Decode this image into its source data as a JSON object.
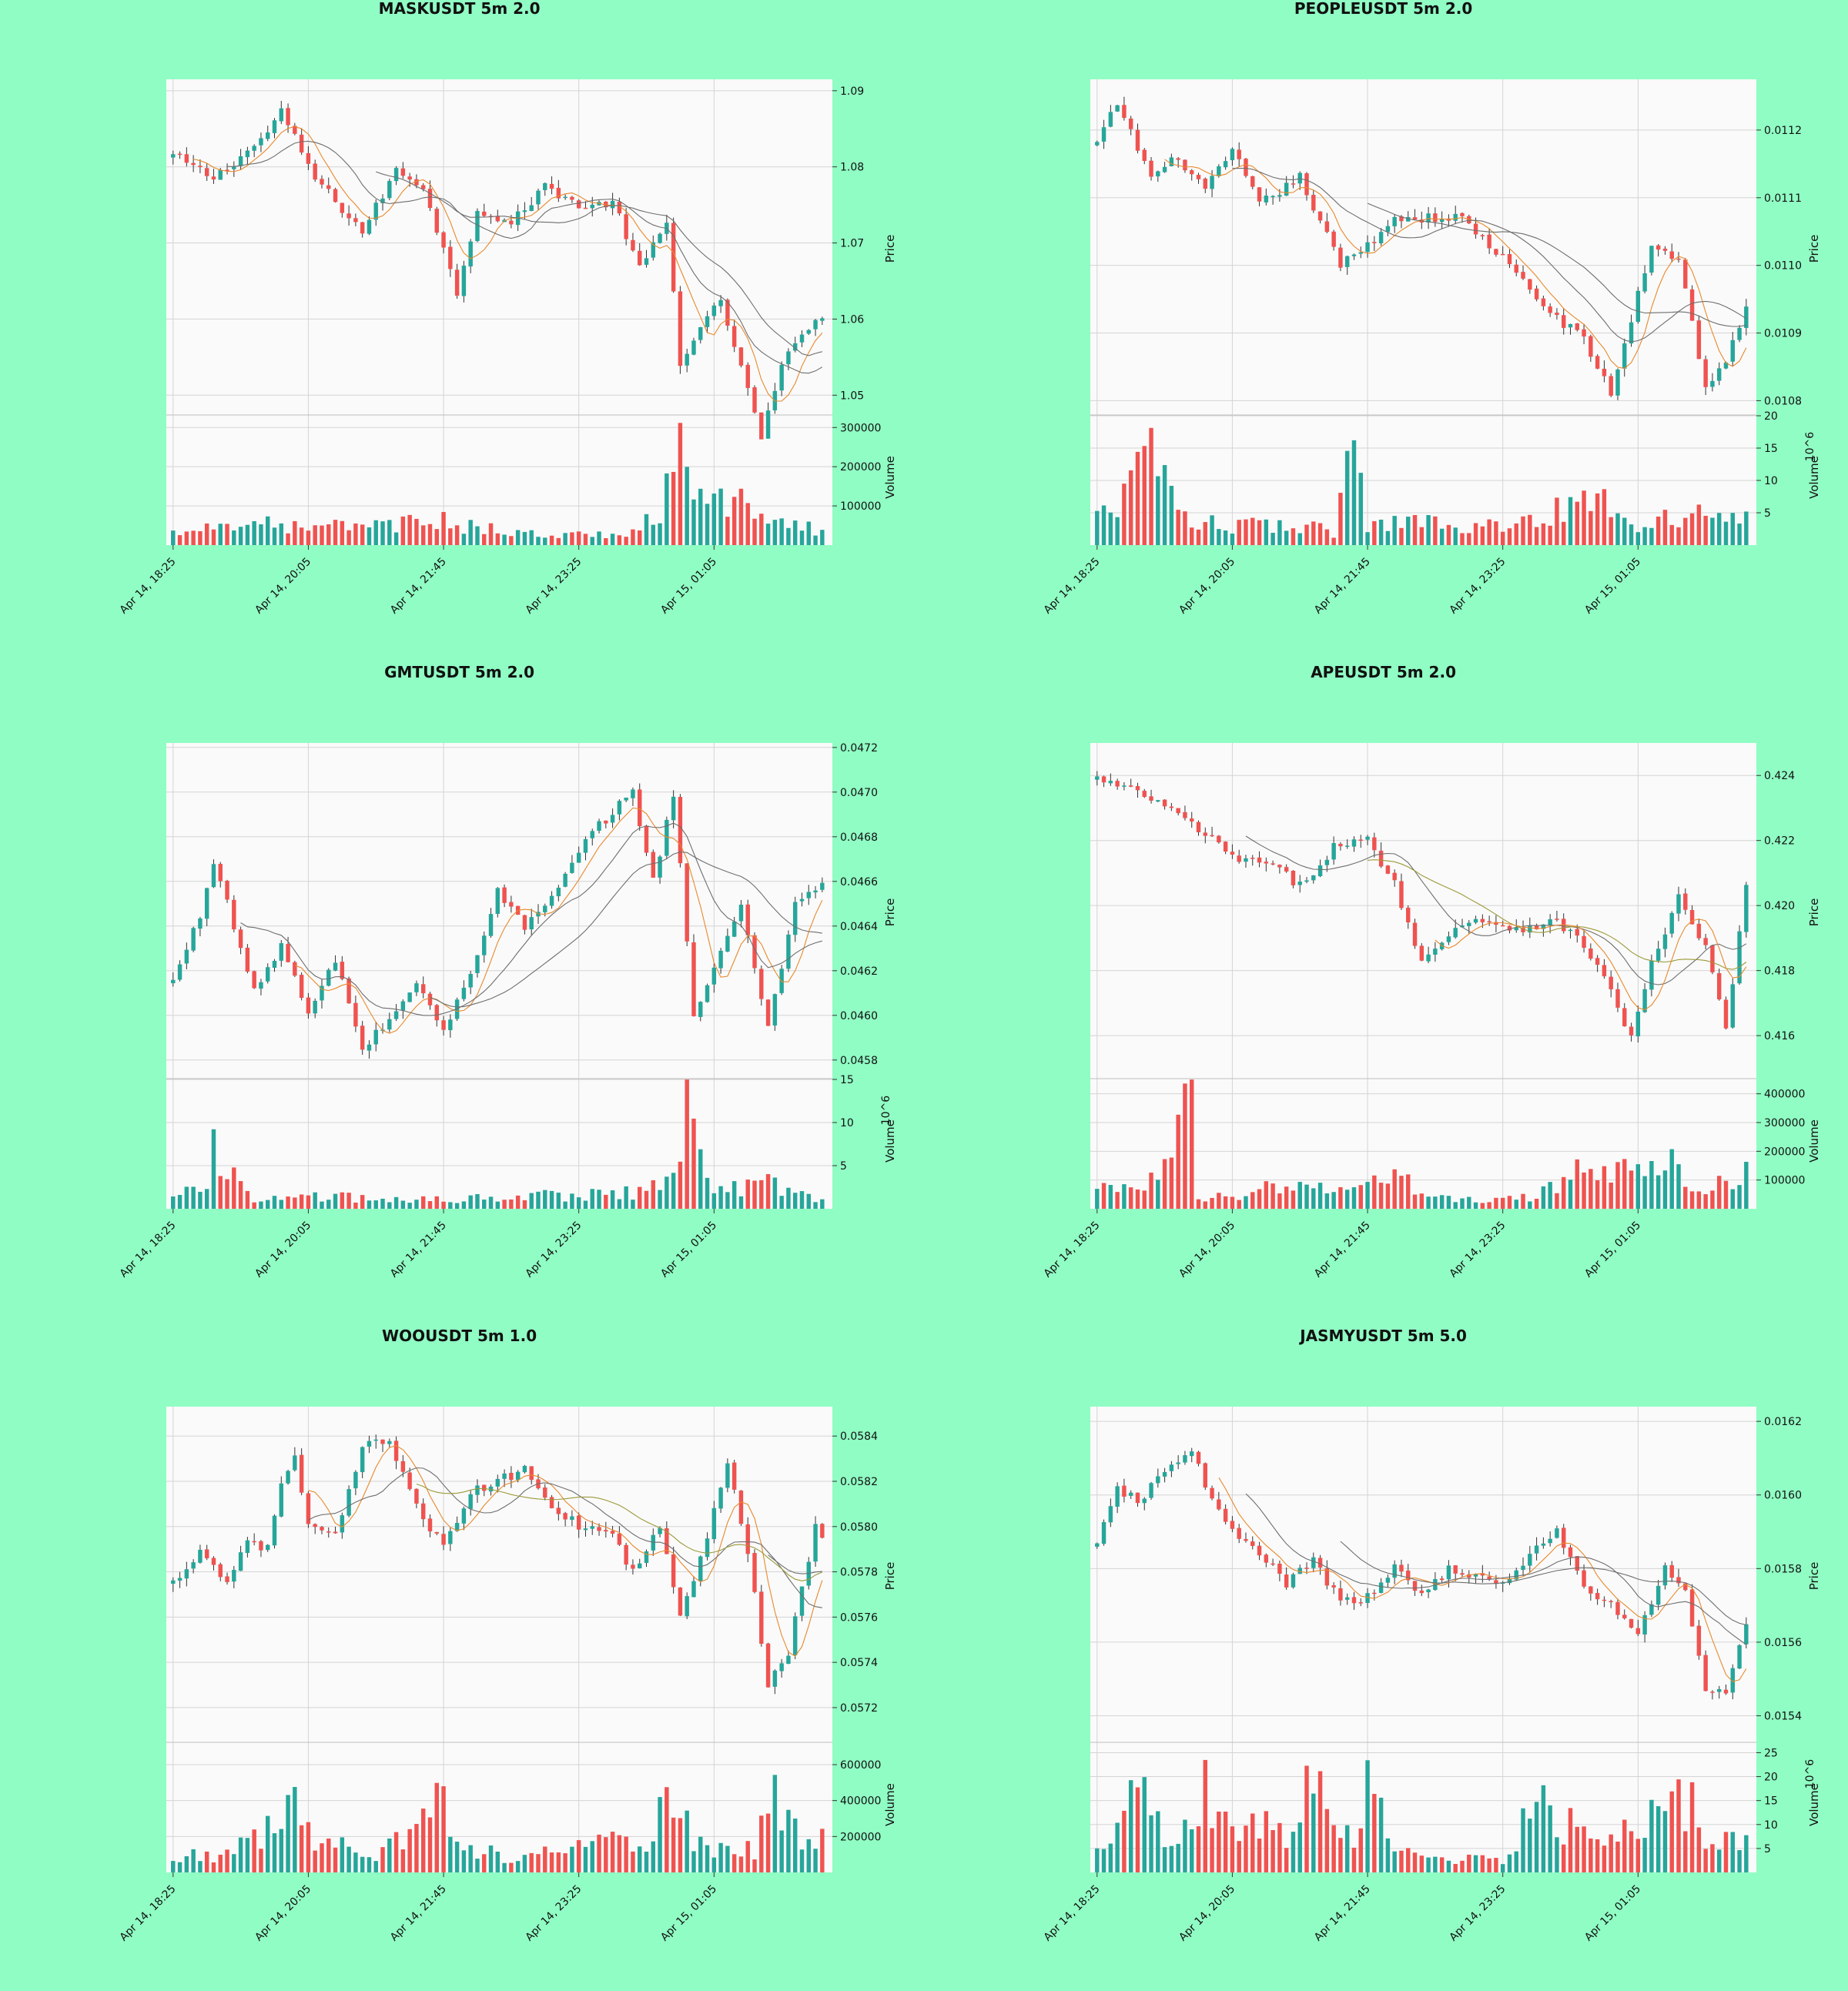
{
  "colors": {
    "background": "#90fdc4",
    "panel": "#fafafa",
    "grid": "#d4d4d4",
    "up": "#26a69a",
    "down": "#ef5350",
    "ma_orange": "#e8892b",
    "ma_gray": "#6e6e6e",
    "ma_olive": "#9a9a3a"
  },
  "x_ticks": [
    "Apr 14, 18:25",
    "Apr 14, 20:05",
    "Apr 14, 21:45",
    "Apr 14, 23:25",
    "Apr 15, 01:05"
  ],
  "chart_data": [
    {
      "type": "candlestick",
      "title": "MASKUSDT 5m 2.0",
      "ylabel": "Price",
      "vol_label": "Volume",
      "vol_exp": "",
      "ylim": [
        1.0475,
        1.0915
      ],
      "price_ticks": [
        "1.09",
        "1.08",
        "1.07",
        "1.06",
        "1.05"
      ],
      "vmax": 330000,
      "vol_ticks": [
        "300000",
        "200000",
        "100000"
      ],
      "anchors": [
        [
          0,
          1.0815
        ],
        [
          6,
          1.0785
        ],
        [
          13,
          1.0835
        ],
        [
          16,
          1.0872
        ],
        [
          21,
          1.0785
        ],
        [
          28,
          1.0715
        ],
        [
          33,
          1.0795
        ],
        [
          37,
          1.0775
        ],
        [
          42,
          1.0635
        ],
        [
          45,
          1.0745
        ],
        [
          50,
          1.0725
        ],
        [
          55,
          1.0775
        ],
        [
          61,
          1.0745
        ],
        [
          65,
          1.0755
        ],
        [
          69,
          1.0665
        ],
        [
          73,
          1.0725
        ],
        [
          75,
          1.0545
        ],
        [
          78,
          1.0585
        ],
        [
          81,
          1.0625
        ],
        [
          84,
          1.0535
        ],
        [
          87,
          1.0445
        ],
        [
          90,
          1.0535
        ],
        [
          93,
          1.0585
        ],
        [
          96,
          1.0605
        ]
      ],
      "vol_anchors": [
        [
          0,
          30000
        ],
        [
          10,
          60000
        ],
        [
          20,
          40000
        ],
        [
          30,
          55000
        ],
        [
          40,
          60000
        ],
        [
          50,
          30000
        ],
        [
          60,
          25000
        ],
        [
          68,
          30000
        ],
        [
          72,
          80000
        ],
        [
          75,
          270000
        ],
        [
          78,
          100000
        ],
        [
          83,
          120000
        ],
        [
          88,
          50000
        ],
        [
          96,
          40000
        ]
      ],
      "mas": [
        {
          "color": "ma_orange",
          "period": 6,
          "start": 3
        },
        {
          "color": "ma_gray",
          "period": 12,
          "start": 8
        },
        {
          "color": "ma_gray",
          "period": 20,
          "start": 30
        }
      ]
    },
    {
      "type": "candlestick",
      "title": "PEOPLEUSDT 5m 2.0",
      "ylabel": "Price",
      "vol_label": "Volume",
      "vol_exp": "6",
      "ylim": [
        0.01078,
        0.011275
      ],
      "price_ticks": [
        "0.0112",
        "0.0111",
        "0.0110",
        "0.0109",
        "0.0108"
      ],
      "vmax": 20,
      "vol_ticks": [
        "20",
        "15",
        "10",
        "5"
      ],
      "anchors": [
        [
          0,
          0.01118
        ],
        [
          3,
          0.01124
        ],
        [
          8,
          0.01113
        ],
        [
          12,
          0.01116
        ],
        [
          16,
          0.01111
        ],
        [
          20,
          0.01117
        ],
        [
          24,
          0.01109
        ],
        [
          30,
          0.01113
        ],
        [
          36,
          0.011
        ],
        [
          40,
          0.01103
        ],
        [
          44,
          0.01107
        ],
        [
          50,
          0.01107
        ],
        [
          54,
          0.01107
        ],
        [
          60,
          0.01101
        ],
        [
          66,
          0.01094
        ],
        [
          72,
          0.01089
        ],
        [
          76,
          0.01081
        ],
        [
          82,
          0.01103
        ],
        [
          86,
          0.01101
        ],
        [
          90,
          0.01082
        ],
        [
          93,
          0.01086
        ],
        [
          97,
          0.01096
        ],
        [
          100,
          0.01103
        ]
      ],
      "vol_anchors": [
        [
          0,
          6
        ],
        [
          5,
          8
        ],
        [
          8,
          14
        ],
        [
          12,
          4
        ],
        [
          20,
          3
        ],
        [
          30,
          3
        ],
        [
          35,
          2
        ],
        [
          38,
          18
        ],
        [
          40,
          3
        ],
        [
          48,
          4
        ],
        [
          55,
          3
        ],
        [
          62,
          3
        ],
        [
          70,
          6
        ],
        [
          75,
          10
        ],
        [
          78,
          3
        ],
        [
          85,
          4
        ],
        [
          90,
          8
        ],
        [
          100,
          3
        ]
      ],
      "mas": [
        {
          "color": "ma_orange",
          "period": 6,
          "start": 10
        },
        {
          "color": "ma_gray",
          "period": 14,
          "start": 20
        },
        {
          "color": "ma_gray",
          "period": 24,
          "start": 40
        }
      ]
    },
    {
      "type": "candlestick",
      "title": "GMTUSDT 5m 2.0",
      "ylabel": "Price",
      "vol_label": "Volume",
      "vol_exp": "6",
      "ylim": [
        0.04572,
        0.04722
      ],
      "price_ticks": [
        "0.0472",
        "0.0470",
        "0.0468",
        "0.0466",
        "0.0464",
        "0.0462",
        "0.0460",
        "0.0458"
      ],
      "vmax": 15,
      "vol_ticks": [
        "15",
        "10",
        "5"
      ],
      "anchors": [
        [
          0,
          0.04615
        ],
        [
          4,
          0.04645
        ],
        [
          6,
          0.0467
        ],
        [
          9,
          0.0464
        ],
        [
          12,
          0.0461
        ],
        [
          16,
          0.04632
        ],
        [
          20,
          0.046
        ],
        [
          24,
          0.04625
        ],
        [
          28,
          0.04585
        ],
        [
          32,
          0.04598
        ],
        [
          36,
          0.04615
        ],
        [
          40,
          0.04592
        ],
        [
          44,
          0.0462
        ],
        [
          48,
          0.04655
        ],
        [
          52,
          0.0464
        ],
        [
          56,
          0.04652
        ],
        [
          62,
          0.04682
        ],
        [
          68,
          0.047
        ],
        [
          71,
          0.0466
        ],
        [
          74,
          0.047
        ],
        [
          77,
          0.046
        ],
        [
          80,
          0.0462
        ],
        [
          84,
          0.0465
        ],
        [
          88,
          0.04595
        ],
        [
          92,
          0.0465
        ],
        [
          96,
          0.0466
        ]
      ],
      "vol_anchors": [
        [
          0,
          1
        ],
        [
          5,
          3
        ],
        [
          6,
          8
        ],
        [
          8,
          5
        ],
        [
          12,
          1
        ],
        [
          24,
          1.5
        ],
        [
          30,
          1
        ],
        [
          40,
          1
        ],
        [
          48,
          1.5
        ],
        [
          60,
          1.5
        ],
        [
          70,
          2
        ],
        [
          74,
          5
        ],
        [
          76,
          14
        ],
        [
          78,
          5
        ],
        [
          80,
          2
        ],
        [
          88,
          3
        ],
        [
          96,
          1
        ]
      ],
      "mas": [
        {
          "color": "ma_orange",
          "period": 6,
          "start": 18
        },
        {
          "color": "ma_gray",
          "period": 12,
          "start": 10
        },
        {
          "color": "ma_gray",
          "period": 24,
          "start": 38
        }
      ]
    },
    {
      "type": "candlestick",
      "title": "APEUSDT 5m 2.0",
      "ylabel": "Price",
      "vol_label": "Volume",
      "vol_exp": "",
      "ylim": [
        0.4147,
        0.425
      ],
      "price_ticks": [
        "0.424",
        "0.422",
        "0.420",
        "0.418",
        "0.416"
      ],
      "vmax": 450000,
      "vol_ticks": [
        "400000",
        "300000",
        "200000",
        "100000"
      ],
      "anchors": [
        [
          0,
          0.4239
        ],
        [
          8,
          0.4233
        ],
        [
          14,
          0.4225
        ],
        [
          20,
          0.4215
        ],
        [
          26,
          0.4212
        ],
        [
          30,
          0.4206
        ],
        [
          35,
          0.4218
        ],
        [
          40,
          0.422
        ],
        [
          44,
          0.4207
        ],
        [
          48,
          0.4182
        ],
        [
          52,
          0.4192
        ],
        [
          56,
          0.4196
        ],
        [
          62,
          0.4193
        ],
        [
          68,
          0.4195
        ],
        [
          72,
          0.4188
        ],
        [
          76,
          0.4174
        ],
        [
          79,
          0.4159
        ],
        [
          82,
          0.4182
        ],
        [
          86,
          0.4202
        ],
        [
          90,
          0.4187
        ],
        [
          93,
          0.4162
        ],
        [
          96,
          0.4205
        ],
        [
          100,
          0.4221
        ]
      ],
      "vol_anchors": [
        [
          0,
          65000
        ],
        [
          7,
          80000
        ],
        [
          14,
          420000
        ],
        [
          15,
          30000
        ],
        [
          25,
          70000
        ],
        [
          35,
          70000
        ],
        [
          45,
          120000
        ],
        [
          48,
          40000
        ],
        [
          55,
          30000
        ],
        [
          65,
          40000
        ],
        [
          70,
          120000
        ],
        [
          80,
          130000
        ],
        [
          85,
          230000
        ],
        [
          88,
          60000
        ],
        [
          92,
          100000
        ],
        [
          96,
          140000
        ],
        [
          100,
          50000
        ]
      ],
      "mas": [
        {
          "color": "ma_gray",
          "period": 12,
          "start": 22
        },
        {
          "color": "ma_olive",
          "period": 20,
          "start": 40
        },
        {
          "color": "ma_orange",
          "period": 6,
          "start": 50
        }
      ]
    },
    {
      "type": "candlestick",
      "title": "WOOUSDT 5m 1.0",
      "ylabel": "Price",
      "vol_label": "Volume",
      "vol_exp": "",
      "ylim": [
        0.05705,
        0.05853
      ],
      "price_ticks": [
        "0.0584",
        "0.0582",
        "0.0580",
        "0.0578",
        "0.0576",
        "0.0574",
        "0.0572"
      ],
      "vmax": 720000,
      "vol_ticks": [
        "600000",
        "400000",
        "200000"
      ],
      "anchors": [
        [
          0,
          0.05775
        ],
        [
          4,
          0.0579
        ],
        [
          8,
          0.05775
        ],
        [
          11,
          0.05795
        ],
        [
          14,
          0.0579
        ],
        [
          16,
          0.0582
        ],
        [
          18,
          0.0583
        ],
        [
          20,
          0.058
        ],
        [
          24,
          0.05795
        ],
        [
          28,
          0.05835
        ],
        [
          32,
          0.05838
        ],
        [
          36,
          0.0581
        ],
        [
          40,
          0.0579
        ],
        [
          44,
          0.05815
        ],
        [
          48,
          0.0582
        ],
        [
          52,
          0.05825
        ],
        [
          56,
          0.0581
        ],
        [
          60,
          0.058
        ],
        [
          64,
          0.058
        ],
        [
          68,
          0.0578
        ],
        [
          72,
          0.058
        ],
        [
          75,
          0.0576
        ],
        [
          78,
          0.05785
        ],
        [
          82,
          0.0583
        ],
        [
          85,
          0.0579
        ],
        [
          88,
          0.0573
        ],
        [
          91,
          0.05745
        ],
        [
          95,
          0.058
        ],
        [
          97,
          0.0579
        ],
        [
          99,
          0.05818
        ]
      ],
      "vol_anchors": [
        [
          0,
          90000
        ],
        [
          8,
          100000
        ],
        [
          15,
          250000
        ],
        [
          18,
          680000
        ],
        [
          20,
          200000
        ],
        [
          30,
          80000
        ],
        [
          40,
          420000
        ],
        [
          42,
          150000
        ],
        [
          50,
          80000
        ],
        [
          60,
          140000
        ],
        [
          70,
          180000
        ],
        [
          74,
          400000
        ],
        [
          78,
          150000
        ],
        [
          86,
          120000
        ],
        [
          88,
          480000
        ],
        [
          92,
          220000
        ],
        [
          99,
          180000
        ]
      ],
      "mas": [
        {
          "color": "ma_orange",
          "period": 6,
          "start": 20
        },
        {
          "color": "ma_gray",
          "period": 12,
          "start": 20
        },
        {
          "color": "ma_olive",
          "period": 20,
          "start": 36
        },
        {
          "color": "ma_gray",
          "period": 26,
          "start": 88
        }
      ]
    },
    {
      "type": "candlestick",
      "title": "JASMYUSDT 5m 5.0",
      "ylabel": "Price",
      "vol_label": "Volume",
      "vol_exp": "6",
      "ylim": [
        0.01533,
        0.01624
      ],
      "price_ticks": [
        "0.0162",
        "0.0160",
        "0.0158",
        "0.0156",
        "0.0154"
      ],
      "vmax": 27,
      "vol_ticks": [
        "25",
        "20",
        "15",
        "10",
        "5"
      ],
      "anchors": [
        [
          0,
          0.01586
        ],
        [
          3,
          0.01602
        ],
        [
          6,
          0.01598
        ],
        [
          10,
          0.01606
        ],
        [
          14,
          0.01613
        ],
        [
          17,
          0.01598
        ],
        [
          20,
          0.0159
        ],
        [
          24,
          0.01584
        ],
        [
          28,
          0.01576
        ],
        [
          32,
          0.01582
        ],
        [
          36,
          0.01571
        ],
        [
          40,
          0.01572
        ],
        [
          44,
          0.0158
        ],
        [
          48,
          0.01573
        ],
        [
          52,
          0.0158
        ],
        [
          56,
          0.01578
        ],
        [
          60,
          0.01575
        ],
        [
          64,
          0.01584
        ],
        [
          68,
          0.0159
        ],
        [
          72,
          0.01575
        ],
        [
          76,
          0.0157
        ],
        [
          80,
          0.01562
        ],
        [
          84,
          0.0158
        ],
        [
          87,
          0.01574
        ],
        [
          90,
          0.01548
        ],
        [
          93,
          0.01545
        ],
        [
          96,
          0.01566
        ],
        [
          99,
          0.01559
        ]
      ],
      "vol_anchors": [
        [
          0,
          4
        ],
        [
          4,
          12
        ],
        [
          8,
          18
        ],
        [
          10,
          5
        ],
        [
          16,
          17
        ],
        [
          20,
          9
        ],
        [
          30,
          9
        ],
        [
          32,
          26
        ],
        [
          34,
          10
        ],
        [
          38,
          6
        ],
        [
          40,
          18
        ],
        [
          44,
          4
        ],
        [
          50,
          3
        ],
        [
          60,
          3
        ],
        [
          66,
          16
        ],
        [
          68,
          10
        ],
        [
          72,
          10
        ],
        [
          80,
          8
        ],
        [
          84,
          17
        ],
        [
          88,
          15
        ],
        [
          90,
          7
        ],
        [
          95,
          7
        ],
        [
          99,
          3
        ]
      ],
      "mas": [
        {
          "color": "ma_orange",
          "period": 6,
          "start": 18
        },
        {
          "color": "ma_gray",
          "period": 12,
          "start": 22
        },
        {
          "color": "ma_gray",
          "period": 24,
          "start": 36
        }
      ]
    }
  ]
}
